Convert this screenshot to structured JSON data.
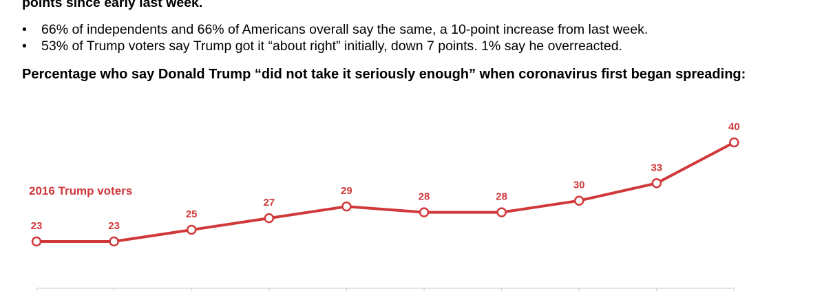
{
  "text": {
    "intro_tail": "points since early last week.",
    "bullets": [
      "66% of independents and 66% of Americans overall say the same, a 10-point increase from last week.",
      "53% of Trump voters say Trump got it “about right” initially, down 7 points. 1% say he overreacted."
    ]
  },
  "chart_data": {
    "type": "line",
    "title": "Percentage who say Donald Trump “did not take it seriously enough” when coronavirus first began spreading:",
    "xlabel": "",
    "ylabel": "",
    "series": [
      {
        "name": "2016 Trump voters",
        "color": "#d0383a",
        "values": [
          23,
          23,
          25,
          27,
          29,
          28,
          28,
          30,
          33,
          40
        ]
      }
    ],
    "grid": false,
    "legend": "inline-left"
  }
}
